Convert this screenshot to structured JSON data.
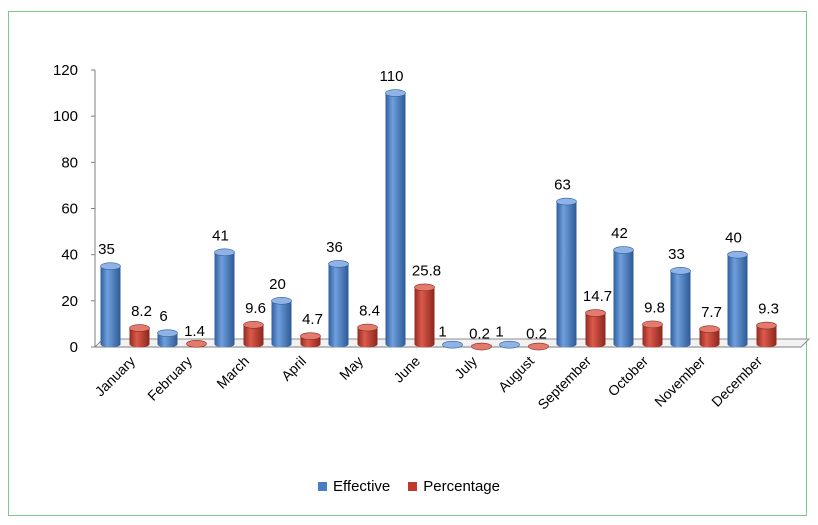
{
  "chart_data": {
    "type": "bar",
    "categories": [
      "January",
      "February",
      "March",
      "April",
      "May",
      "June",
      "July",
      "August",
      "September",
      "October",
      "November",
      "December"
    ],
    "series": [
      {
        "name": "Effective",
        "values": [
          35,
          6,
          41,
          20,
          36,
          110,
          1,
          1,
          63,
          42,
          33,
          40
        ],
        "labels": [
          "35",
          "6",
          "41",
          "20",
          "36",
          "110",
          "1",
          "1",
          "63",
          "42",
          "33",
          "40"
        ],
        "color": "#4a7ec4"
      },
      {
        "name": "Percentage",
        "values": [
          8.2,
          1.4,
          9.6,
          4.7,
          8.4,
          25.8,
          0.2,
          0.2,
          14.7,
          9.8,
          7.7,
          9.3
        ],
        "labels": [
          "8.2",
          "1.4",
          "9.6",
          "4.7",
          "8.4",
          "25.8",
          "0.2",
          "0.2",
          "14.7",
          "9.8",
          "7.7",
          "9.3"
        ],
        "color": "#c0392b"
      }
    ],
    "yticks": [
      "0",
      "20",
      "40",
      "60",
      "80",
      "100",
      "120"
    ],
    "ylim": [
      0,
      120
    ],
    "legend_position": "bottom",
    "grid": false,
    "style": "3d-cylinder"
  },
  "colors": {
    "frame_border": "#7cc98c",
    "effective": "#4a7ec4",
    "percentage": "#c0392b"
  }
}
